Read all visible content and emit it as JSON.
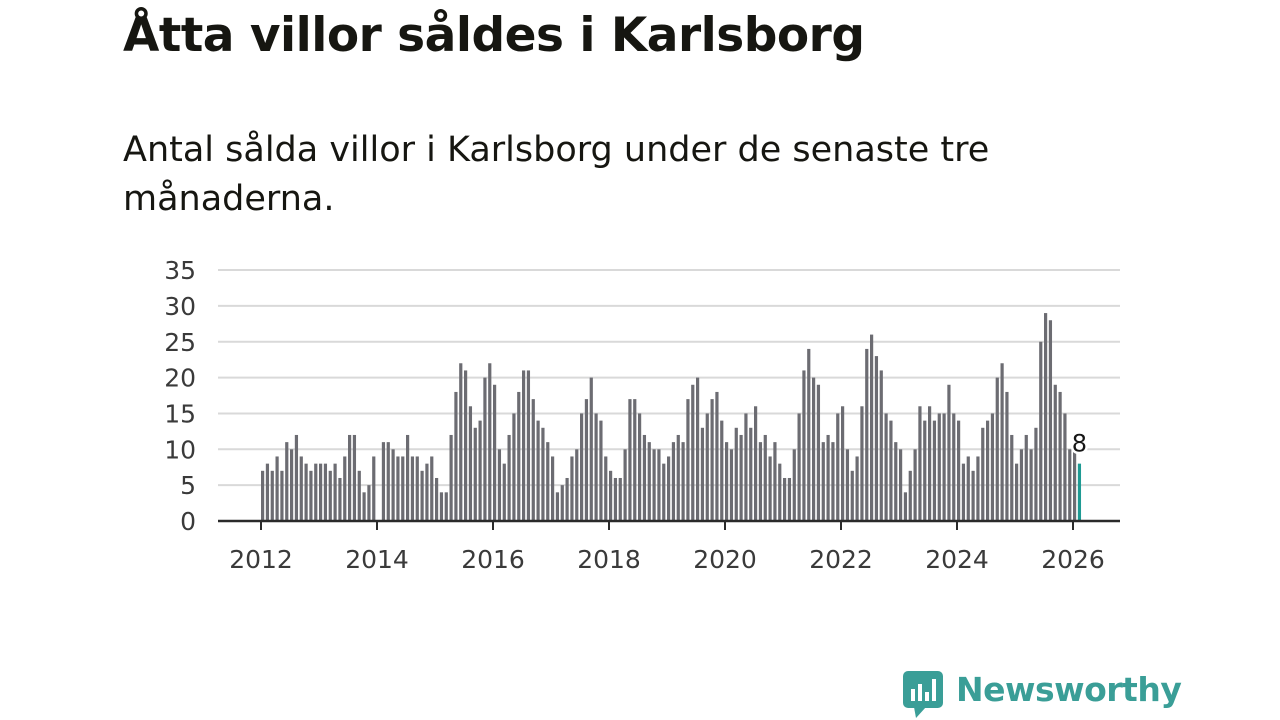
{
  "title": "Åtta villor såldes i Karlsborg",
  "subtitle": "Antal sålda villor i Karlsborg under de senaste tre månaderna.",
  "brand": {
    "name": "Newsworthy",
    "color": "#3a9e97",
    "icon": "bar-chart-speech-bubble-icon"
  },
  "chart_data": {
    "type": "bar",
    "title": "",
    "xlabel": "",
    "ylabel": "",
    "ylim": [
      0,
      35
    ],
    "yticks": [
      0,
      5,
      10,
      15,
      20,
      25,
      30,
      35
    ],
    "xticks": [
      "2012",
      "2014",
      "2016",
      "2018",
      "2020",
      "2022",
      "2024",
      "2026"
    ],
    "grid": true,
    "start": "2012-01",
    "bar_color": "#6c6c72",
    "highlight_color": "#1e9a93",
    "highlight_label": "8",
    "values": [
      7,
      8,
      7,
      9,
      7,
      11,
      10,
      12,
      9,
      8,
      7,
      8,
      8,
      8,
      7,
      8,
      6,
      9,
      12,
      12,
      7,
      4,
      5,
      9,
      0,
      11,
      11,
      10,
      9,
      9,
      12,
      9,
      9,
      7,
      8,
      9,
      6,
      4,
      4,
      12,
      18,
      22,
      21,
      16,
      13,
      14,
      20,
      22,
      19,
      10,
      8,
      12,
      15,
      18,
      21,
      21,
      17,
      14,
      13,
      11,
      9,
      4,
      5,
      6,
      9,
      10,
      15,
      17,
      20,
      15,
      14,
      9,
      7,
      6,
      6,
      10,
      17,
      17,
      15,
      12,
      11,
      10,
      10,
      8,
      9,
      11,
      12,
      11,
      17,
      19,
      20,
      13,
      15,
      17,
      18,
      14,
      11,
      10,
      13,
      12,
      15,
      13,
      16,
      11,
      12,
      9,
      11,
      8,
      6,
      6,
      10,
      15,
      21,
      24,
      20,
      19,
      11,
      12,
      11,
      15,
      16,
      10,
      7,
      9,
      16,
      24,
      26,
      23,
      21,
      15,
      14,
      11,
      10,
      4,
      7,
      10,
      16,
      14,
      16,
      14,
      15,
      15,
      19,
      15,
      14,
      8,
      9,
      7,
      9,
      13,
      14,
      15,
      20,
      22,
      18,
      12,
      8,
      10,
      12,
      10,
      13,
      25,
      29,
      28,
      19,
      18,
      15,
      10,
      10,
      8
    ]
  }
}
